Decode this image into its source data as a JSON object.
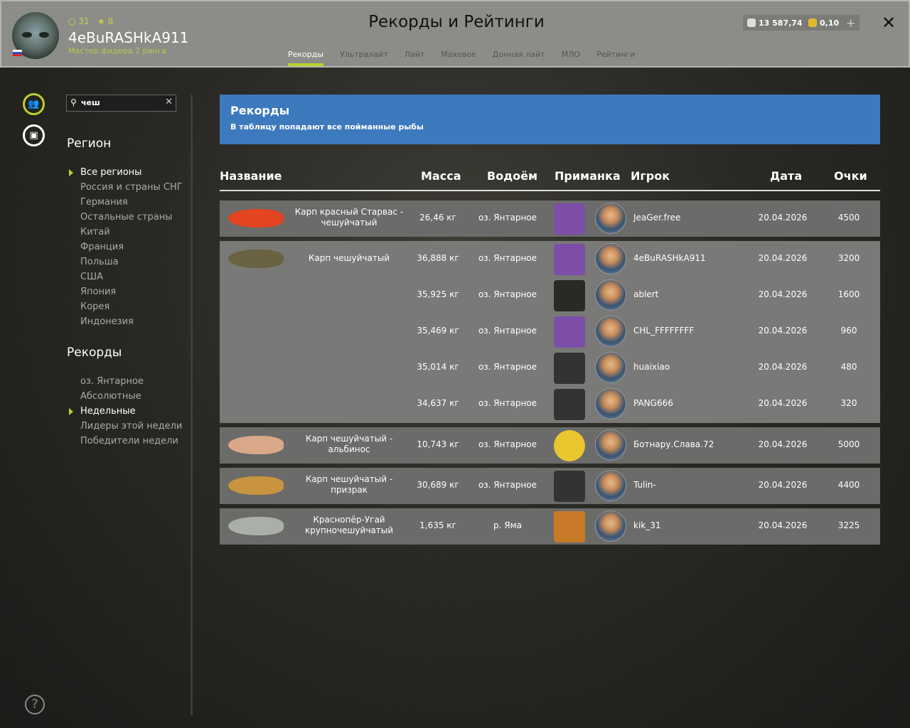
{
  "header": {
    "title": "Рекорды и Рейтинги",
    "username": "4eBuRASHkA911",
    "level": "31",
    "stars": "8",
    "rank": "Мастер фидера 2 ранга",
    "silver": "13 587,74",
    "gold": "0,10",
    "add_label": "+",
    "close_label": "✕",
    "tabs": [
      {
        "label": "Рекорды",
        "active": true
      },
      {
        "label": "Ультралайт"
      },
      {
        "label": "Лайт"
      },
      {
        "label": "Маховое"
      },
      {
        "label": "Донная лайт"
      },
      {
        "label": "МЛО"
      },
      {
        "label": "Рейтинги"
      }
    ]
  },
  "sidebar": {
    "search_value": "чеш",
    "region_title": "Регион",
    "regions": [
      {
        "label": "Все регионы",
        "selected": true
      },
      {
        "label": "Россия и страны СНГ"
      },
      {
        "label": "Германия"
      },
      {
        "label": "Остальные страны"
      },
      {
        "label": "Китай"
      },
      {
        "label": "Франция"
      },
      {
        "label": "Польша"
      },
      {
        "label": "США"
      },
      {
        "label": "Япония"
      },
      {
        "label": "Корея"
      },
      {
        "label": "Индонезия"
      }
    ],
    "records_title": "Рекорды",
    "records": [
      {
        "label": "оз. Янтарное"
      },
      {
        "label": "Абсолютные"
      },
      {
        "label": "Недельные",
        "selected": true
      },
      {
        "label": "Лидеры этой недели"
      },
      {
        "label": "Победители недели"
      }
    ],
    "help_label": "?"
  },
  "banner": {
    "title": "Рекорды",
    "subtitle": "В таблицу попадают все пойманные рыбы"
  },
  "table": {
    "columns": [
      "Название",
      "Масса",
      "Водоём",
      "Приманка",
      "Игрок",
      "Дата",
      "Очки"
    ],
    "groups": [
      {
        "name": "Карп красный Старвас - чешуйчатый",
        "fish_color": "#e2451f",
        "rows": [
          {
            "mass": "26,46 кг",
            "water": "оз. Янтарное",
            "bait": "#7d4ea8",
            "player": "JeaGer.free",
            "date": "20.04.2026",
            "points": "4500"
          }
        ]
      },
      {
        "name": "Карп чешуйчатый",
        "fish_color": "#6a6240",
        "rows": [
          {
            "mass": "36,888 кг",
            "water": "оз. Янтарное",
            "bait": "#7d4ea8",
            "player": "4eBuRASHkA911",
            "date": "20.04.2026",
            "points": "3200"
          },
          {
            "mass": "35,925 кг",
            "water": "оз. Янтарное",
            "bait": "#2a2a24",
            "player": "ablert",
            "date": "20.04.2026",
            "points": "1600"
          },
          {
            "mass": "35,469 кг",
            "water": "оз. Янтарное",
            "bait": "#7d4ea8",
            "player": "CHL_FFFFFFFF",
            "date": "20.04.2026",
            "points": "960"
          },
          {
            "mass": "35,014 кг",
            "water": "оз. Янтарное",
            "bait": "#333",
            "player": "huaixiao",
            "date": "20.04.2026",
            "points": "480"
          },
          {
            "mass": "34,637 кг",
            "water": "оз. Янтарное",
            "bait": "#333",
            "player": "PANG666",
            "date": "20.04.2026",
            "points": "320"
          }
        ]
      },
      {
        "name": "Карп чешуйчатый - альбинос",
        "fish_color": "#d8a888",
        "rows": [
          {
            "mass": "10,743 кг",
            "water": "оз. Янтарное",
            "bait": "#e8c62e",
            "player": "Ботнару.Слава.72",
            "date": "20.04.2026",
            "points": "5000"
          }
        ]
      },
      {
        "name": "Карп чешуйчатый - призрак",
        "fish_color": "#c99440",
        "rows": [
          {
            "mass": "30,689 кг",
            "water": "оз. Янтарное",
            "bait": "#333",
            "player": "Tulin-",
            "date": "20.04.2026",
            "points": "4400"
          }
        ]
      },
      {
        "name": "Краснопёр-Угай крупночешуйчатый",
        "fish_color": "#aab0a8",
        "rows": [
          {
            "mass": "1,635 кг",
            "water": "р. Яма",
            "bait": "#c87a28",
            "player": "kik_31",
            "date": "20.04.2026",
            "points": "3225"
          }
        ]
      }
    ]
  }
}
